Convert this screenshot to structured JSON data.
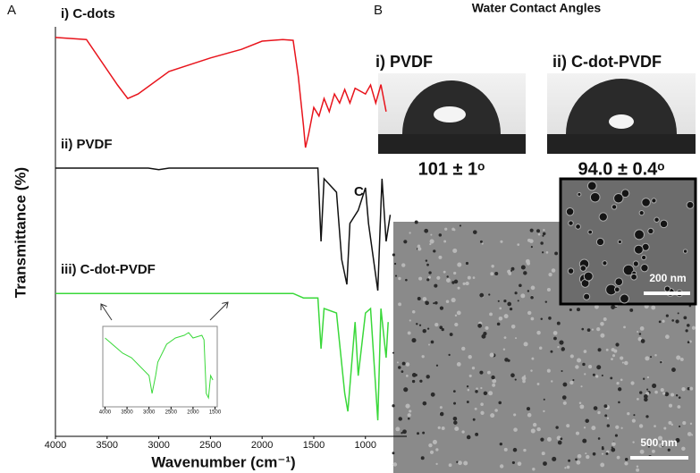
{
  "chart_data": [
    {
      "type": "line",
      "xlabel": "Wavenumber (cm⁻¹)",
      "ylabel": "Transmittance (%)",
      "xlim": [
        4000,
        600
      ],
      "ylim": [
        0,
        100
      ],
      "xticks": [
        4000,
        3500,
        3000,
        2500,
        2000,
        1500,
        1000
      ],
      "series": [
        {
          "name": "i) C-dots",
          "color": "#e8141c",
          "x": [
            4000,
            3700,
            3400,
            3300,
            3200,
            2900,
            2500,
            2200,
            2000,
            1800,
            1700,
            1650,
            1600,
            1580,
            1550,
            1500,
            1450,
            1400,
            1350,
            1300,
            1250,
            1200,
            1150,
            1100,
            1000,
            950,
            900,
            850,
            800
          ],
          "values": [
            97.4,
            96.9,
            85.8,
            82.5,
            83.6,
            89.1,
            92.4,
            94.5,
            96.5,
            96.9,
            96.7,
            88,
            76,
            70.5,
            73.8,
            80.3,
            78.2,
            82.5,
            79.3,
            83.6,
            81.4,
            84.7,
            81.4,
            85,
            83.6,
            85.8,
            81.4,
            85.9,
            79.3
          ]
        },
        {
          "name": "ii) PVDF",
          "color": "#111111",
          "x": [
            4000,
            3100,
            3000,
            2900,
            1800,
            1460,
            1430,
            1400,
            1280,
            1230,
            1180,
            1150,
            1070,
            1000,
            970,
            880,
            850,
            840,
            800,
            760
          ],
          "values": [
            65.5,
            65.5,
            65.1,
            65.5,
            65.5,
            65.5,
            47.6,
            62.9,
            59.6,
            43.2,
            37.1,
            52,
            55.2,
            60.7,
            52,
            35.6,
            56.3,
            62.9,
            47.6,
            54.1
          ]
        },
        {
          "name": "iii) C-dot-PVDF",
          "color": "#3ad83a",
          "x": [
            4000,
            2500,
            1700,
            1600,
            1460,
            1430,
            1400,
            1280,
            1200,
            1170,
            1100,
            1070,
            1000,
            950,
            880,
            850,
            800,
            780
          ],
          "values": [
            34.9,
            34.9,
            34.9,
            33.8,
            33.8,
            21.4,
            31.2,
            30.1,
            10.5,
            6.1,
            27.9,
            14.8,
            30.1,
            31.2,
            3.9,
            31.2,
            19.2,
            27.9
          ]
        }
      ]
    },
    {
      "type": "line",
      "xlim": [
        4050,
        1450
      ],
      "ylim": [
        0,
        100
      ],
      "xticks": [
        4000,
        3500,
        3000,
        2500,
        2000,
        1500
      ],
      "series": [
        {
          "color": "#3ad83a",
          "x": [
            4000,
            3600,
            3400,
            3200,
            3000,
            2930,
            2850,
            2800,
            2600,
            2400,
            2200,
            2100,
            2000,
            1800,
            1750,
            1700,
            1650,
            1600,
            1550
          ],
          "values": [
            85.6,
            66.7,
            61.1,
            50,
            38.9,
            16.7,
            38.9,
            55.6,
            77.8,
            85.6,
            88.9,
            92.2,
            85.6,
            88.9,
            83.3,
            16.7,
            11.1,
            38.9,
            33.3
          ]
        }
      ]
    }
  ],
  "panel_labels": [
    "A",
    "B",
    "C"
  ],
  "contact_angles": {
    "title": "Water Contact Angles",
    "items": [
      {
        "label": "i) PVDF",
        "value": "101 ± 1ᵒ"
      },
      {
        "label": "ii) C-dot-PVDF",
        "value": "94.0 ± 0.4ᵒ"
      }
    ]
  },
  "sem": {
    "scale_main": "500 nm",
    "scale_inset": "200 nm"
  }
}
